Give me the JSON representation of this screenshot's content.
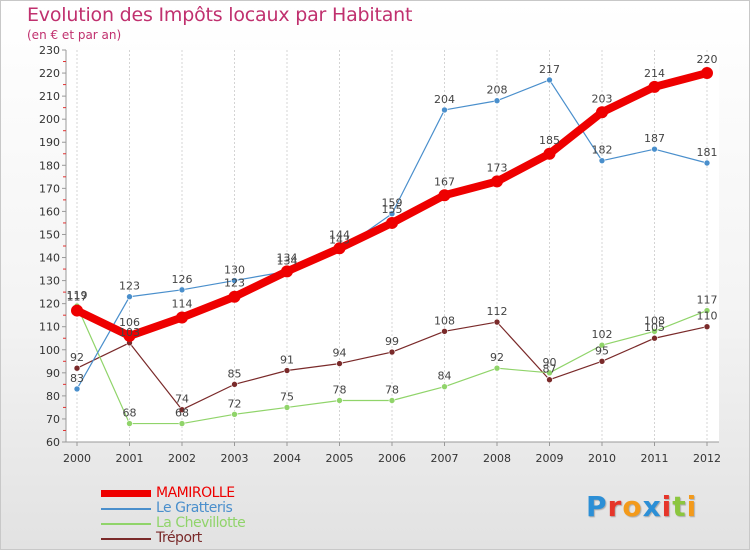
{
  "title": "Evolution des Impôts locaux par Habitant",
  "subtitle": "(en € et par an)",
  "logo": {
    "letters": [
      "P",
      "r",
      "o",
      "x",
      "i",
      "t",
      "i"
    ],
    "colors": [
      "#2c8fd6",
      "#e6362a",
      "#f39a1b",
      "#2c8fd6",
      "#e6362a",
      "#8cc63f",
      "#f39a1b"
    ]
  },
  "chart_data": {
    "type": "line",
    "x": [
      "2000",
      "2001",
      "2002",
      "2003",
      "2004",
      "2005",
      "2006",
      "2007",
      "2008",
      "2009",
      "2010",
      "2011",
      "2012"
    ],
    "ylim": [
      60,
      230
    ],
    "yticks": [
      60,
      70,
      80,
      90,
      100,
      110,
      120,
      130,
      140,
      150,
      160,
      170,
      180,
      190,
      200,
      210,
      220,
      230
    ],
    "grid": "vertical",
    "legend_position": "bottom-left",
    "series": [
      {
        "name": "MAMIROLLE",
        "color": "#ee0000",
        "values": [
          117,
          106,
          114,
          123,
          134,
          144,
          155,
          167,
          173,
          185,
          203,
          214,
          220
        ]
      },
      {
        "name": "Le Gratteris",
        "color": "#4a8fcc",
        "values": [
          83,
          123,
          126,
          130,
          134,
          143,
          159,
          204,
          208,
          217,
          182,
          187,
          181
        ]
      },
      {
        "name": "La Chevillotte",
        "color": "#90d46a",
        "values": [
          119,
          68,
          68,
          72,
          75,
          78,
          78,
          84,
          92,
          90,
          102,
          108,
          117
        ]
      },
      {
        "name": "Tréport",
        "color": "#7a2a2a",
        "values": [
          92,
          103,
          74,
          85,
          91,
          94,
          99,
          108,
          112,
          87,
          95,
          105,
          110
        ]
      }
    ]
  }
}
